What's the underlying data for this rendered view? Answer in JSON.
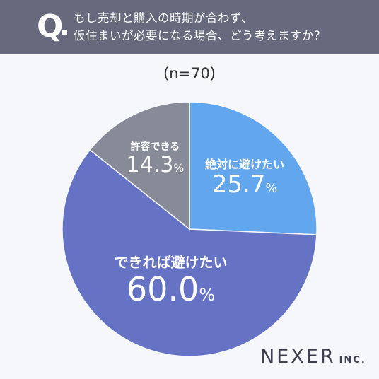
{
  "header": {
    "q_mark": "Q",
    "question_line1": "もし売却と購入の時期が合わず、",
    "question_line2": "仮住まいが必要になる場合、どう考えますか？"
  },
  "sample_label": "(n=70)",
  "logo": {
    "main": "NEXER",
    "suffix": "INC."
  },
  "colors": {
    "header_bg": "#666a7c",
    "background": "#f6f7fb"
  },
  "chart_data": {
    "type": "pie",
    "title": "",
    "unit": "%",
    "slices": [
      {
        "label": "絶対に避けたい",
        "value": 25.7,
        "value_text": "25.7",
        "color": "#62a6ee"
      },
      {
        "label": "できれば避けたい",
        "value": 60.0,
        "value_text": "60.0",
        "color": "#6673c4"
      },
      {
        "label": "許容できる",
        "value": 14.3,
        "value_text": "14.3",
        "color": "#878b97"
      }
    ],
    "start_angle": "12 o'clock",
    "direction": "clockwise"
  }
}
